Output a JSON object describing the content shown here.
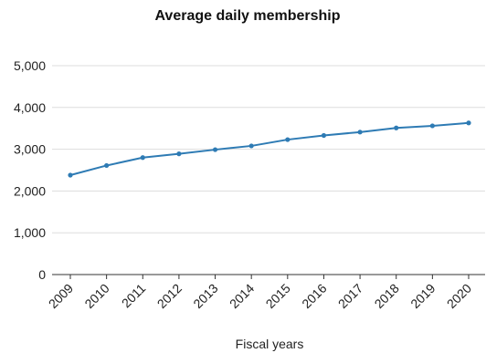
{
  "chart_data": {
    "type": "line",
    "title": "Average daily membership",
    "xlabel": "Fiscal years",
    "ylabel": "",
    "categories": [
      "2009",
      "2010",
      "2011",
      "2012",
      "2013",
      "2014",
      "2015",
      "2016",
      "2017",
      "2018",
      "2019",
      "2020"
    ],
    "series": [
      {
        "values": [
          2380,
          2610,
          2800,
          2890,
          2990,
          3080,
          3230,
          3330,
          3410,
          3510,
          3560,
          3630
        ]
      }
    ],
    "ylim": [
      0,
      5000
    ],
    "yticks": [
      0,
      1000,
      2000,
      3000,
      4000,
      5000
    ],
    "ytick_labels": [
      "0",
      "1,000",
      "2,000",
      "3,000",
      "4,000",
      "5,000"
    ],
    "grid": true,
    "legend": "none",
    "colors": {
      "line": "#2e7bb4",
      "grid": "#dddddd",
      "axis": "#333333"
    }
  }
}
